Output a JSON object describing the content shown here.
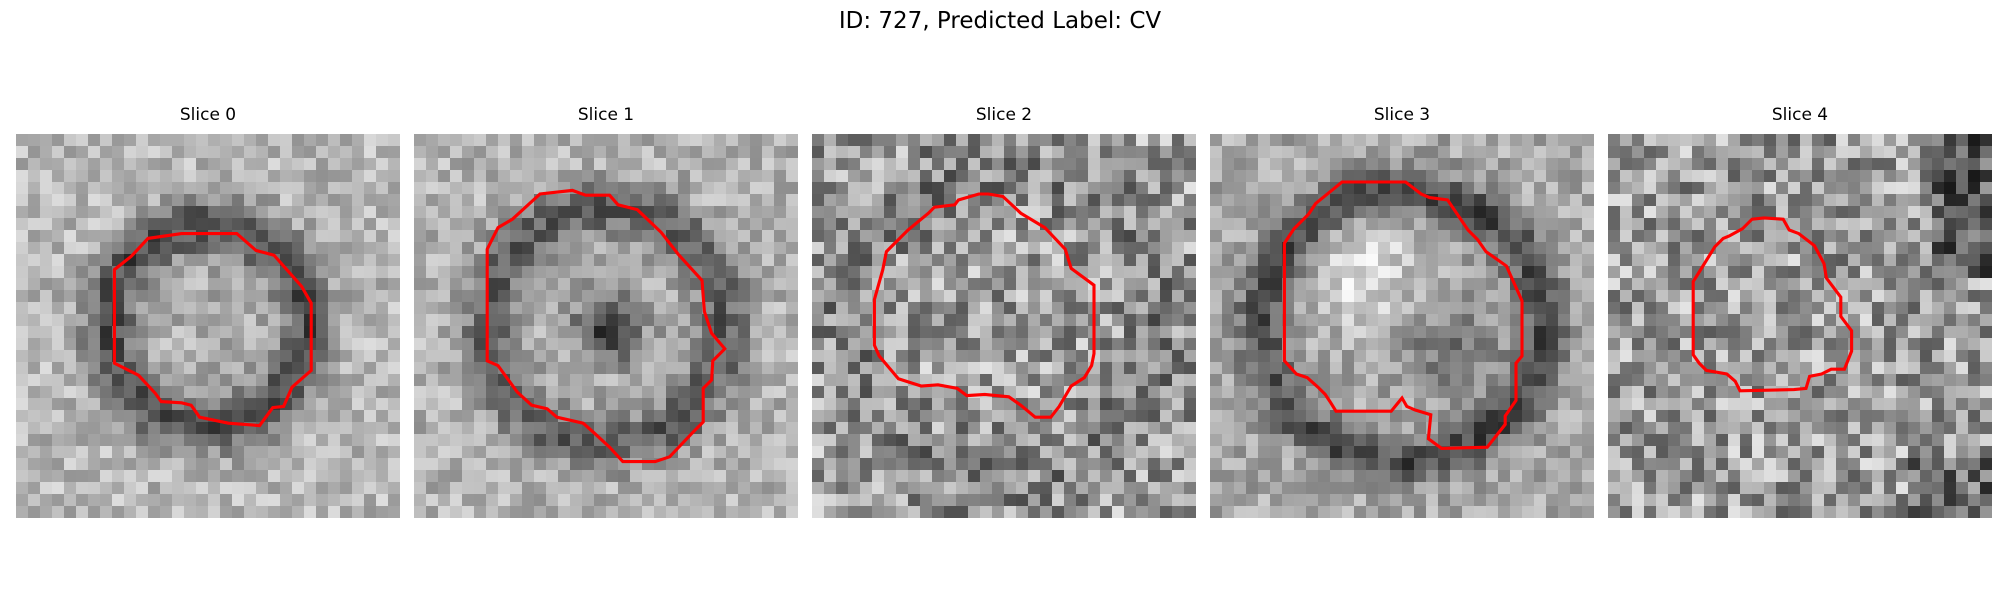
{
  "figure": {
    "title": "ID: 727, Predicted Label: CV",
    "image_colormap": "gray",
    "contour_color": "#ff0000",
    "panels": [
      {
        "title": "Slice 0",
        "seed": 11,
        "style": "ring_dark_center_mid"
      },
      {
        "title": "Slice 1",
        "seed": 23,
        "style": "ring_dark_center_dark"
      },
      {
        "title": "Slice 2",
        "seed": 37,
        "style": "noise_uniform"
      },
      {
        "title": "Slice 3",
        "seed": 41,
        "style": "arc_bright_top"
      },
      {
        "title": "Slice 4",
        "seed": 59,
        "style": "noise_dark_corner"
      }
    ]
  }
}
